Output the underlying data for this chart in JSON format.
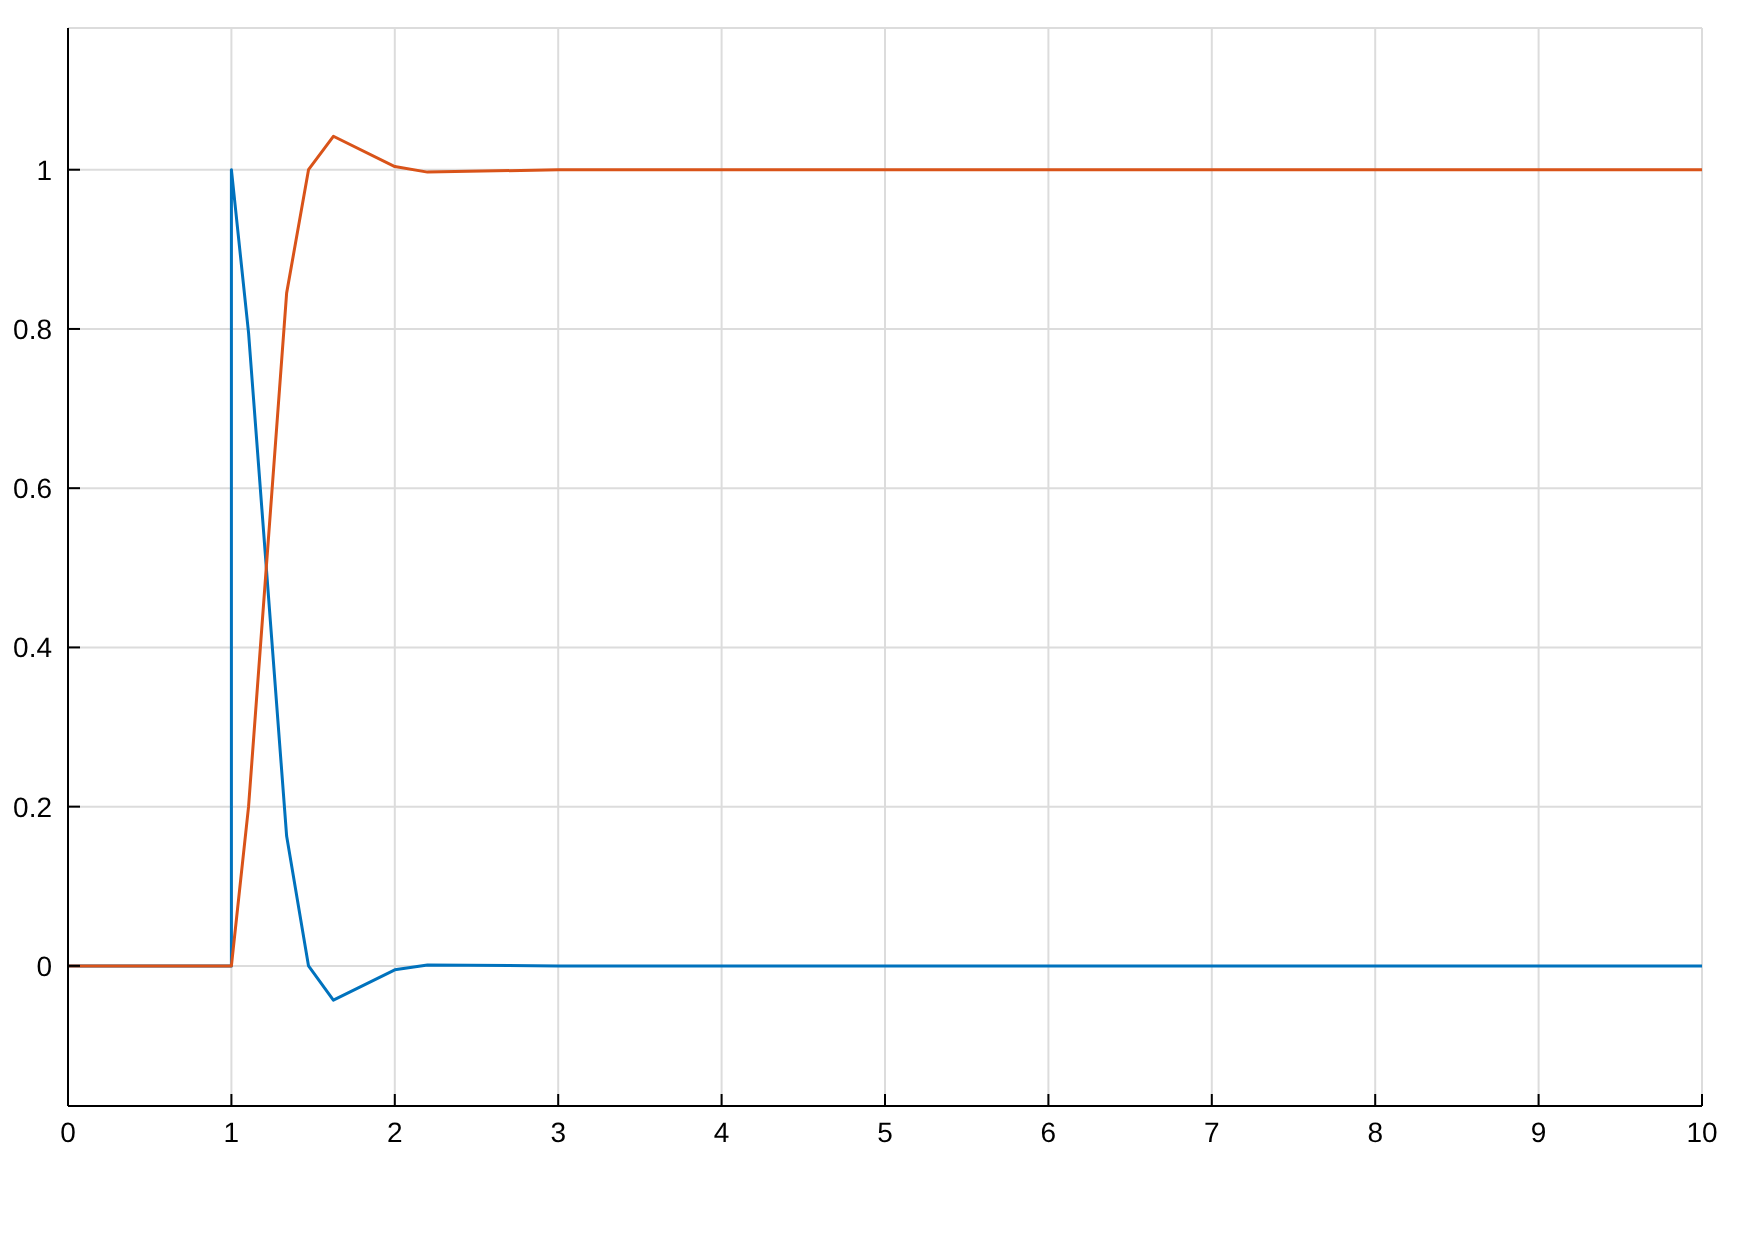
{
  "chart_data": {
    "type": "line",
    "xlim": [
      0,
      10
    ],
    "xticks": [
      0,
      1,
      2,
      3,
      4,
      5,
      6,
      7,
      8,
      9,
      10
    ],
    "ylim": [
      -0.176,
      1.178
    ],
    "yticks": [
      0,
      0.2,
      0.4,
      0.6,
      0.8,
      1
    ],
    "grid": true,
    "marker": "none",
    "line_style": "solid",
    "series": [
      {
        "color": "#0072bd",
        "x": [
          0,
          1,
          1,
          1.105,
          1.338,
          1.472,
          1.624,
          2,
          2.2,
          3,
          10
        ],
        "values": [
          0,
          0,
          1,
          0.795,
          0.163,
          0,
          -0.043,
          -0.005,
          0.001,
          0,
          0
        ]
      },
      {
        "color": "#d95319",
        "x": [
          0,
          1,
          1.105,
          1.338,
          1.472,
          1.624,
          2,
          2.2,
          3,
          10
        ],
        "values": [
          0,
          0,
          0.2,
          0.845,
          1,
          1.042,
          1.004,
          0.997,
          1,
          1
        ]
      }
    ]
  }
}
